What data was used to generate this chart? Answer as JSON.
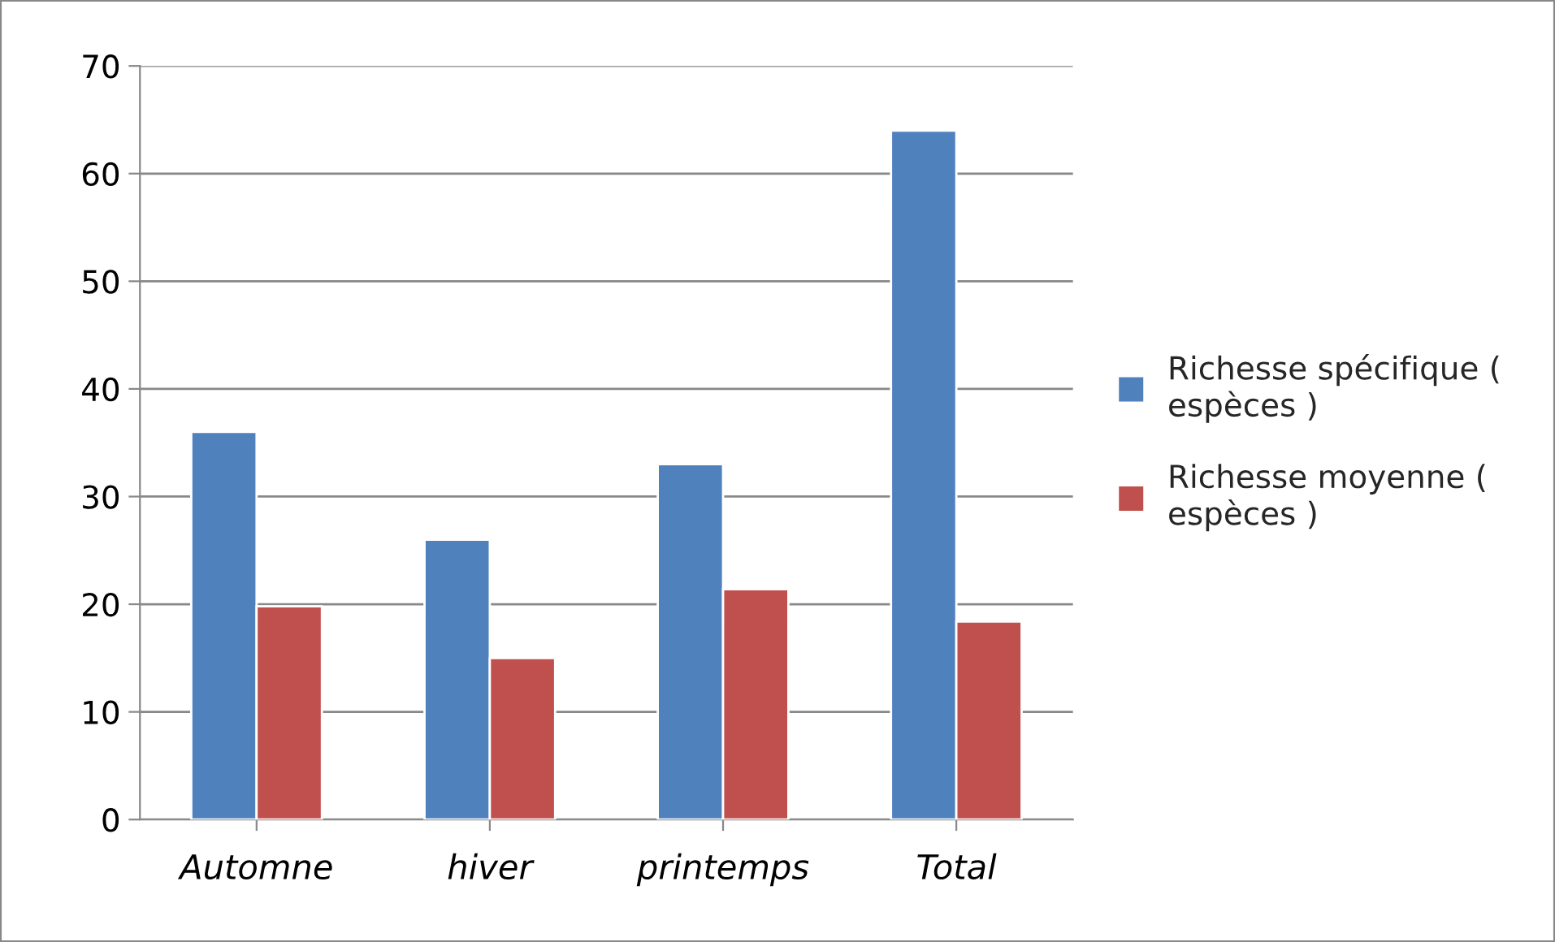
{
  "chart_data": {
    "type": "bar",
    "categories": [
      "Automne",
      "hiver",
      "printemps",
      "Total"
    ],
    "series": [
      {
        "name": "Richesse spécifique (\nespèces )",
        "color": "#4f81bd",
        "values": [
          36,
          26,
          33,
          64
        ]
      },
      {
        "name": "Richesse moyenne (\nespèces )",
        "color": "#c0504d",
        "values": [
          19.8,
          15,
          21.4,
          18.4
        ]
      }
    ],
    "ylim": [
      0,
      70
    ],
    "yticks": [
      0,
      10,
      20,
      30,
      40,
      50,
      60,
      70
    ],
    "grid": "y",
    "legend": "right"
  }
}
